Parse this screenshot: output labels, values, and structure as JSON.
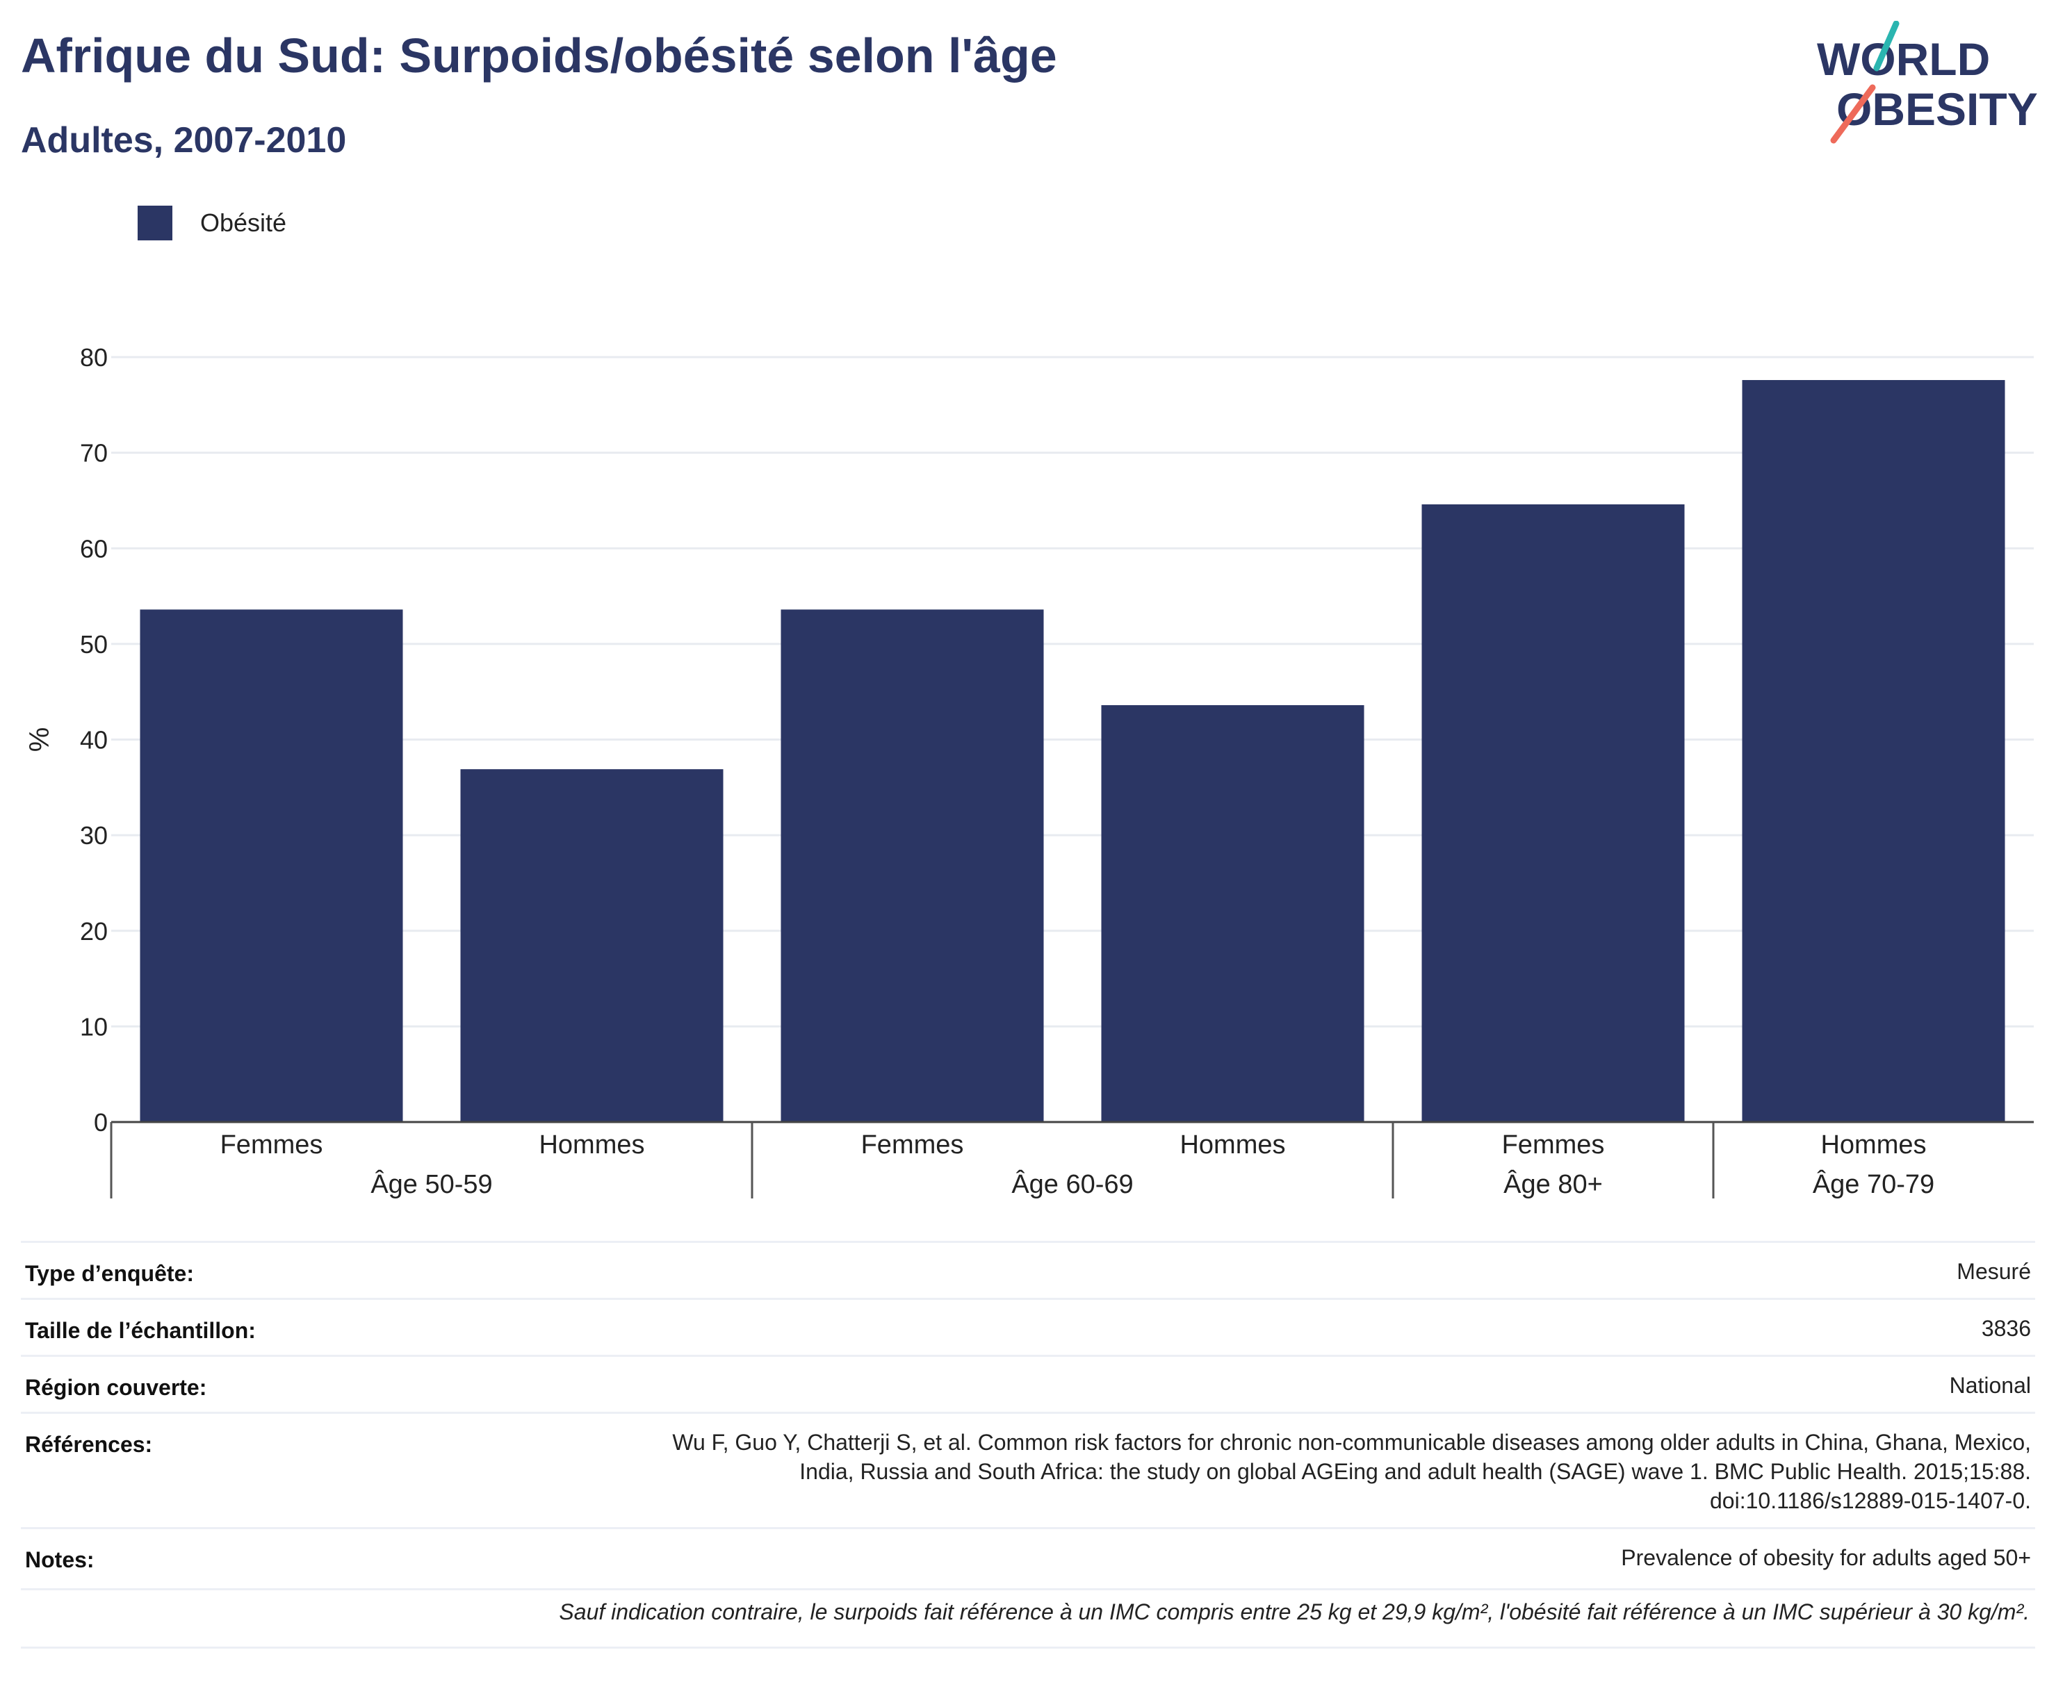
{
  "header": {
    "title": "Afrique du Sud: Surpoids/obésité selon l'âge",
    "subtitle": "Adultes, 2007-2010"
  },
  "logo": {
    "line1": "WORLD",
    "line2": "OBESITY",
    "colors": {
      "text": "#2b3664",
      "teal": "#2ab5b0",
      "coral": "#ee6a5a"
    }
  },
  "legend": {
    "label": "Obésité",
    "color": "#2b3664"
  },
  "chart_data": {
    "type": "bar",
    "title": "Afrique du Sud: Surpoids/obésité selon l'âge",
    "subtitle": "Adultes, 2007-2010",
    "ylabel": "%",
    "ylim": [
      0,
      80
    ],
    "yticks": [
      0,
      10,
      20,
      30,
      40,
      50,
      60,
      70,
      80
    ],
    "grid": true,
    "legend_position": "top-left",
    "categories": [
      "Femmes",
      "Hommes",
      "Femmes",
      "Hommes",
      "Femmes",
      "Hommes"
    ],
    "groups": [
      {
        "label": "Âge 50-59",
        "span": [
          0,
          1
        ]
      },
      {
        "label": "Âge 60-69",
        "span": [
          2,
          3
        ]
      },
      {
        "label": "Âge 80+",
        "span": [
          4,
          4
        ]
      },
      {
        "label": "Âge 70-79",
        "span": [
          5,
          5
        ]
      }
    ],
    "series": [
      {
        "name": "Obésité",
        "color": "#2b3664",
        "values": [
          53.6,
          36.9,
          53.6,
          43.6,
          64.6,
          77.6
        ]
      }
    ]
  },
  "info": {
    "rows": [
      {
        "key": "Type d’enquête:",
        "value": [
          "Mesuré"
        ]
      },
      {
        "key": "Taille de l’échantillon:",
        "value": [
          "3836"
        ]
      },
      {
        "key": "Région couverte:",
        "value": [
          "National"
        ]
      },
      {
        "key": "Références:",
        "value": [
          "Wu F, Guo Y, Chatterji S, et al. Common risk factors for chronic non-communicable diseases among older adults in China, Ghana, Mexico,",
          "India, Russia and South Africa: the study on global AGEing and adult health (SAGE) wave 1. BMC Public Health. 2015;15:88.",
          "doi:10.1186/s12889-015-1407-0."
        ]
      },
      {
        "key": "Notes:",
        "value": [
          "Prevalence of obesity for adults aged 50+"
        ]
      }
    ],
    "footnote": "Sauf indication contraire, le surpoids fait référence à un IMC compris entre 25 kg et 29,9 kg/m², l'obésité fait référence à un IMC supérieur à 30 kg/m²."
  }
}
